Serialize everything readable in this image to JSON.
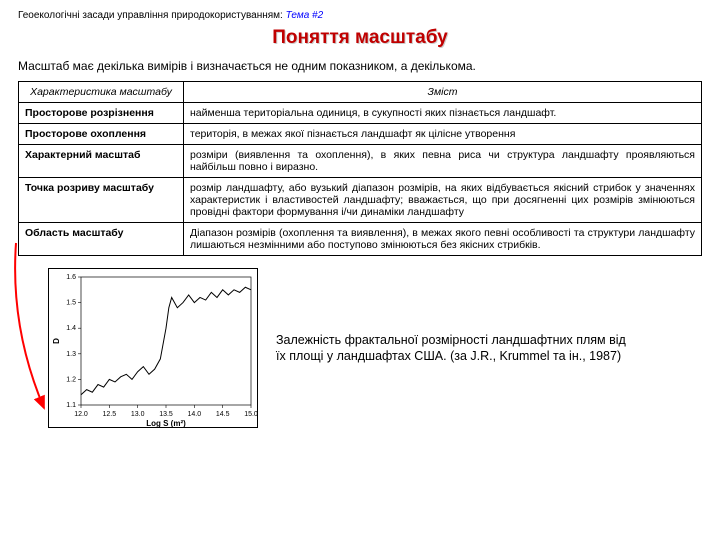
{
  "header": {
    "prefix": "Геоекологічні засади управління природокористуванням:",
    "topic": "Тема #2"
  },
  "title": "Поняття масштабу",
  "intro": "Масштаб має декілька вимірів і визначається не одним показником, а декількома.",
  "table": {
    "head": {
      "c1": "Характеристика масштабу",
      "c2": "Зміст"
    },
    "rows": [
      {
        "c1": "Просторове розрізнення",
        "c2": "найменша територіальна одиниця, в сукупності яких пізнається ландшафт."
      },
      {
        "c1": "Просторове охоплення",
        "c2": "територія, в межах якої пізнається ландшафт як цілісне утворення"
      },
      {
        "c1": "Характерний масштаб",
        "c2": "розміри (виявлення та охоплення), в яких певна риса чи структура ландшафту проявляються найбільш повно і виразно."
      },
      {
        "c1": "Точка розриву масштабу",
        "c2": "розмір ландшафту, або вузький діапазон розмірів, на яких відбувається якісний стрибок у значеннях характеристик і властивостей ландшафту; вважається, що при досягненні цих розмірів змінюються провідні фактори формування і/чи динаміки ландшафту"
      },
      {
        "c1": "Область масштабу",
        "c2": "Діапазон розмірів (охоплення та виявлення), в межах якого певні особливості та структури ландшафту лишаються незмінними або поступово змінюються без якісних стрибків."
      }
    ]
  },
  "chart": {
    "type": "line",
    "xlabel": "Log S (m²)",
    "ylabel": "D",
    "xlim": [
      12,
      15
    ],
    "ylim": [
      1.1,
      1.6
    ],
    "xticks": [
      "12.0",
      "12.5",
      "13.0",
      "13.5",
      "14.0",
      "14.5",
      "15.0"
    ],
    "yticks": [
      "1.1",
      "1.2",
      "1.3",
      "1.4",
      "1.5",
      "1.6"
    ],
    "tick_fontsize": 7,
    "label_fontsize": 8,
    "line_color": "#000000",
    "line_width": 1,
    "background_color": "#ffffff",
    "points": [
      [
        12.0,
        1.14
      ],
      [
        12.1,
        1.16
      ],
      [
        12.2,
        1.15
      ],
      [
        12.3,
        1.18
      ],
      [
        12.4,
        1.17
      ],
      [
        12.5,
        1.2
      ],
      [
        12.6,
        1.19
      ],
      [
        12.7,
        1.21
      ],
      [
        12.8,
        1.22
      ],
      [
        12.9,
        1.2
      ],
      [
        13.0,
        1.23
      ],
      [
        13.1,
        1.25
      ],
      [
        13.2,
        1.22
      ],
      [
        13.3,
        1.24
      ],
      [
        13.4,
        1.28
      ],
      [
        13.5,
        1.4
      ],
      [
        13.55,
        1.48
      ],
      [
        13.6,
        1.52
      ],
      [
        13.7,
        1.48
      ],
      [
        13.8,
        1.5
      ],
      [
        13.9,
        1.53
      ],
      [
        14.0,
        1.5
      ],
      [
        14.1,
        1.52
      ],
      [
        14.2,
        1.51
      ],
      [
        14.3,
        1.54
      ],
      [
        14.4,
        1.52
      ],
      [
        14.5,
        1.55
      ],
      [
        14.6,
        1.53
      ],
      [
        14.7,
        1.55
      ],
      [
        14.8,
        1.54
      ],
      [
        14.9,
        1.56
      ],
      [
        15.0,
        1.55
      ]
    ]
  },
  "caption": "Залежність фрактальної розмірності ландшафтних плям від їх площі у ландшафтах США. (за J.R., Krummel та ін., 1987)",
  "arrow": {
    "color": "#ff0000",
    "width": 2
  }
}
